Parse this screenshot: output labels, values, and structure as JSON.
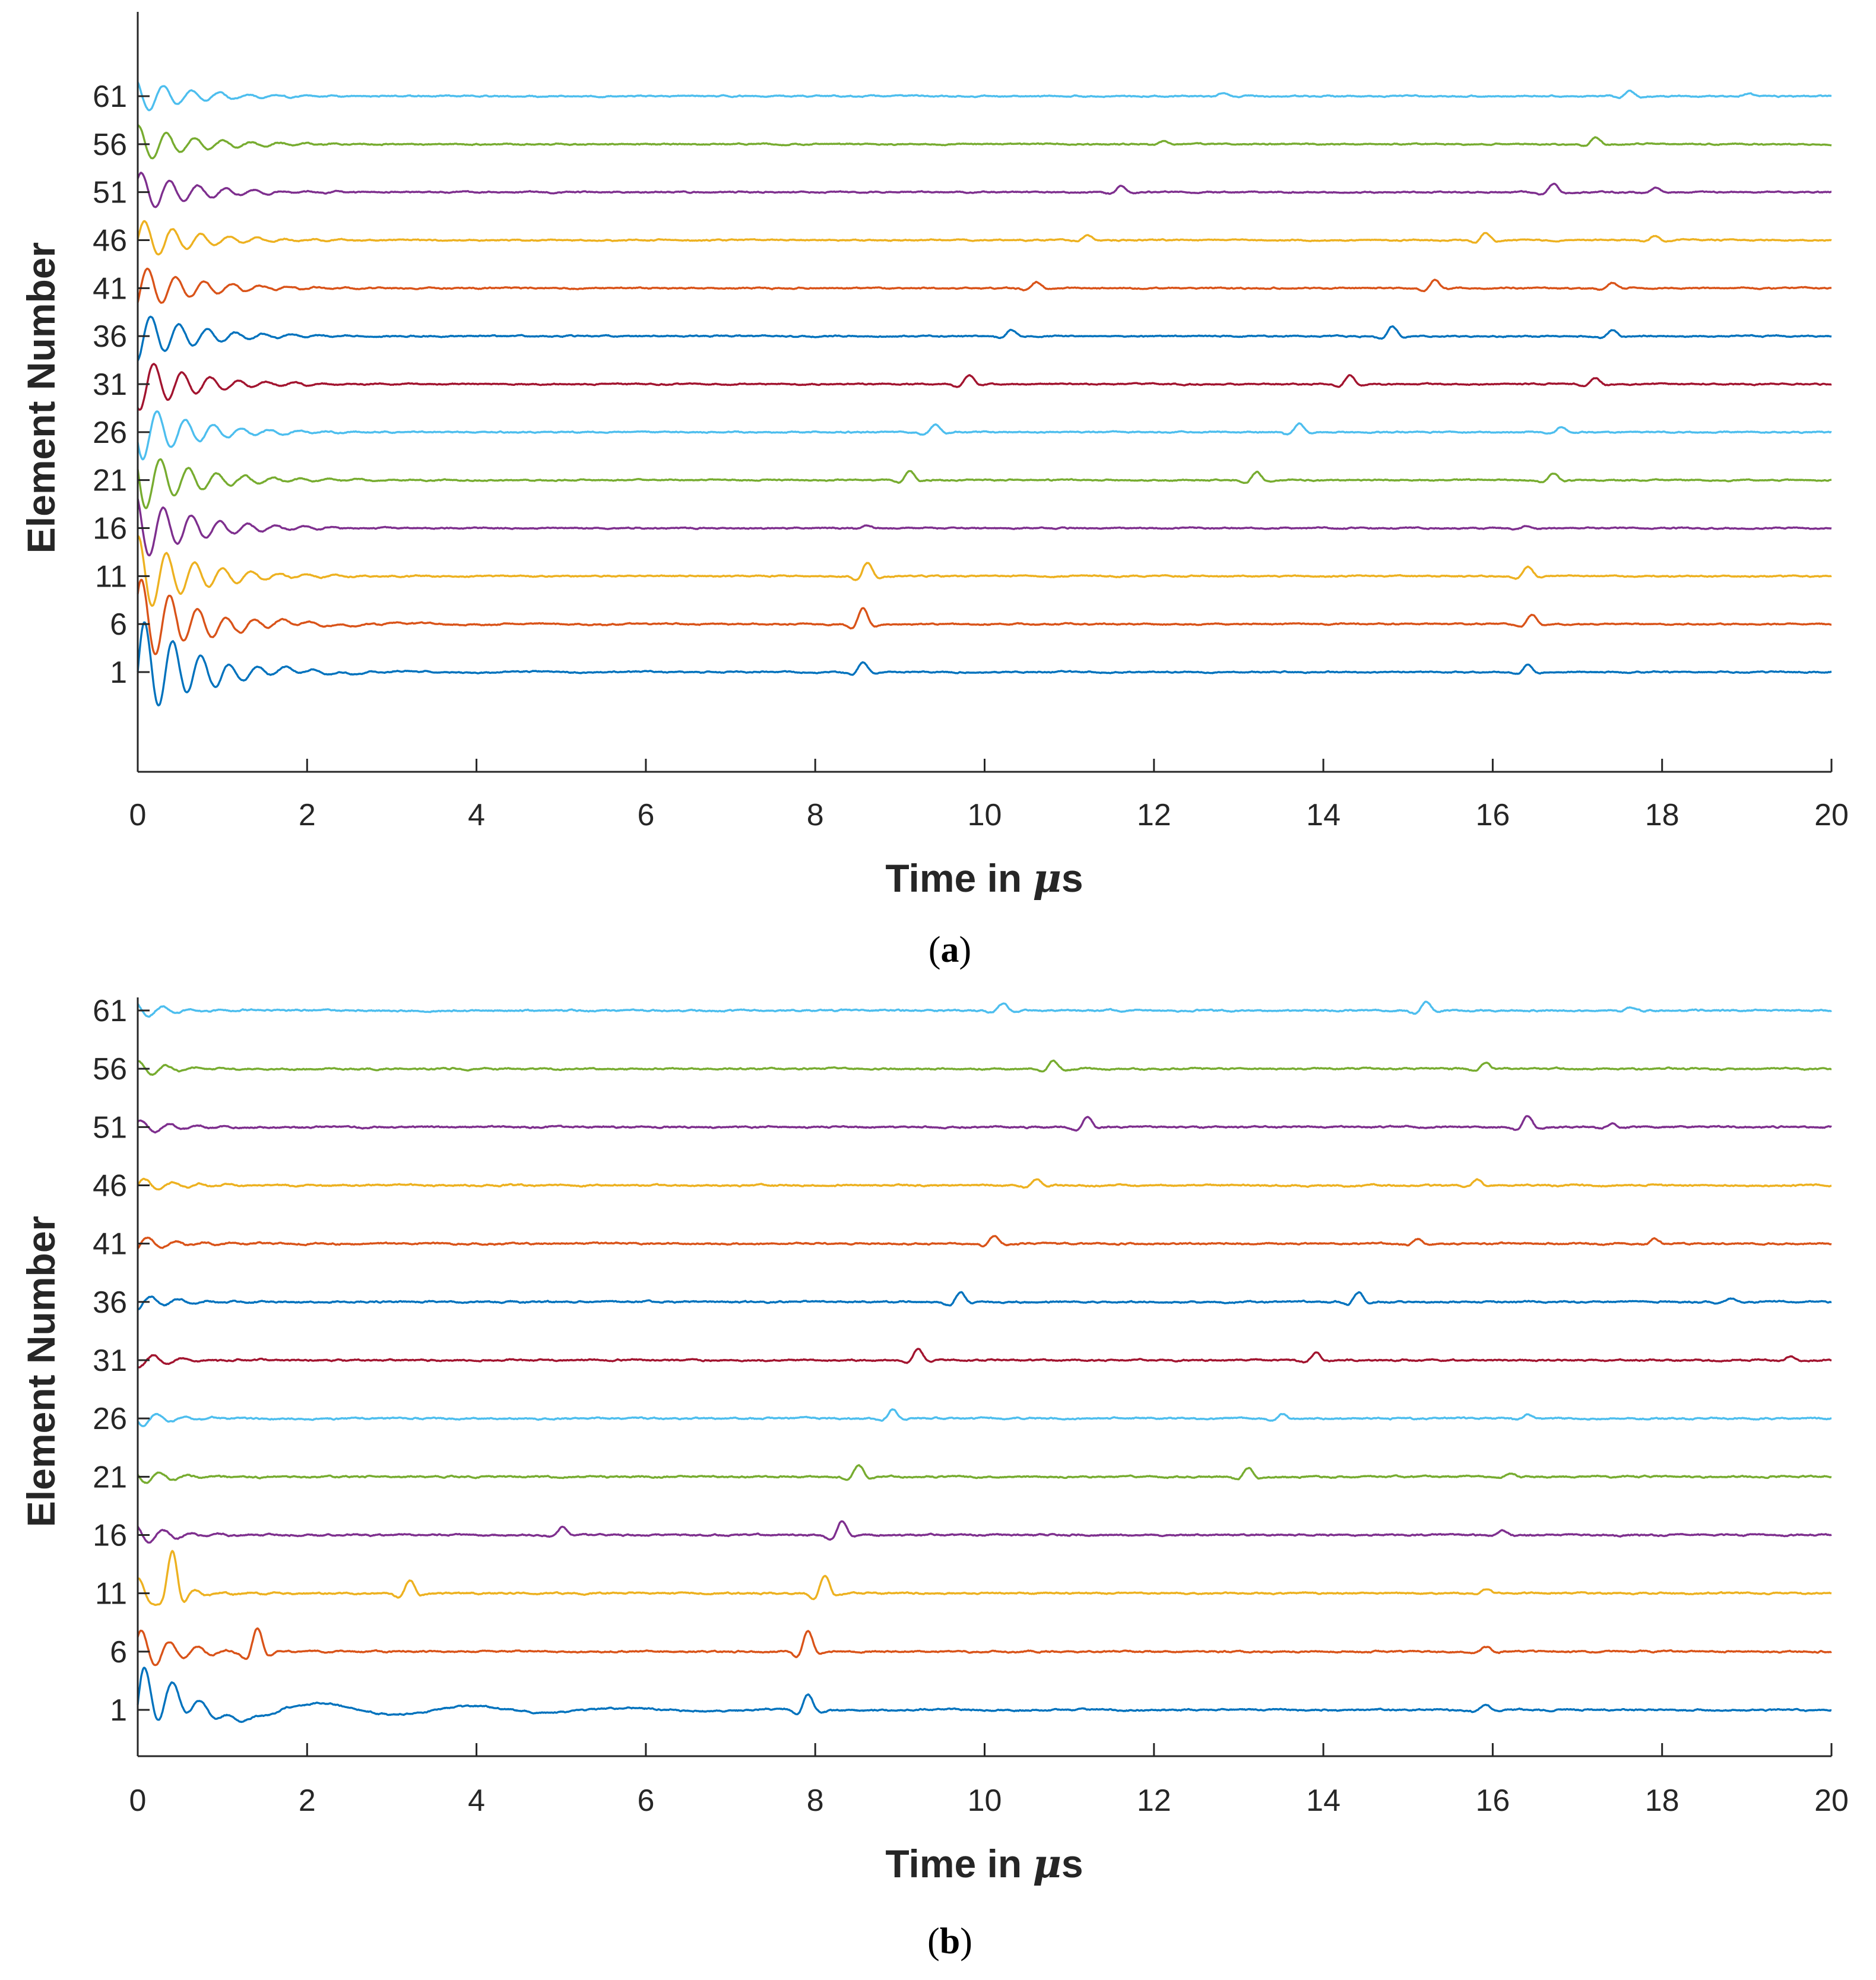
{
  "colors": {
    "palette": [
      "#0072BD",
      "#D95319",
      "#EDB120",
      "#7E2F8E",
      "#77AC30",
      "#4DBEEE",
      "#A2142F"
    ],
    "axis": "#262626"
  },
  "chart_data": [
    {
      "type": "line",
      "panel_label": "a",
      "xlabel": "Time in ",
      "xlabel_unit_symbol": "μ",
      "xlabel_unit_suffix": "s",
      "ylabel": "Element Number",
      "xlim": [
        0,
        20
      ],
      "xticks": [
        "0",
        "2",
        "4",
        "6",
        "8",
        "10",
        "12",
        "14",
        "16",
        "18",
        "20"
      ],
      "yticks": [
        "1",
        "6",
        "11",
        "16",
        "21",
        "26",
        "31",
        "36",
        "41",
        "46",
        "51",
        "56",
        "61"
      ],
      "series": [
        {
          "name": "1",
          "baseline": 1,
          "initial_amp": 2.6,
          "echoes": [
            [
              8.55,
              0.45
            ],
            [
              16.4,
              0.35
            ]
          ]
        },
        {
          "name": "6",
          "baseline": 6,
          "initial_amp": 2.2,
          "echoes": [
            [
              8.55,
              0.75
            ],
            [
              16.45,
              0.45
            ]
          ]
        },
        {
          "name": "11",
          "baseline": 11,
          "initial_amp": 1.9,
          "echoes": [
            [
              8.6,
              0.65
            ],
            [
              16.4,
              0.45
            ]
          ]
        },
        {
          "name": "16",
          "baseline": 16,
          "initial_amp": 1.6,
          "echoes": [
            [
              8.6,
              0.12
            ],
            [
              16.4,
              0.1
            ]
          ]
        },
        {
          "name": "21",
          "baseline": 21,
          "initial_amp": 1.5,
          "echoes": [
            [
              9.1,
              0.45
            ],
            [
              13.2,
              0.4
            ],
            [
              16.7,
              0.3
            ]
          ]
        },
        {
          "name": "26",
          "baseline": 26,
          "initial_amp": 1.4,
          "echoes": [
            [
              9.4,
              0.35
            ],
            [
              13.7,
              0.4
            ],
            [
              16.8,
              0.25
            ]
          ]
        },
        {
          "name": "31",
          "baseline": 31,
          "initial_amp": 1.3,
          "echoes": [
            [
              9.8,
              0.45
            ],
            [
              14.3,
              0.45
            ],
            [
              17.2,
              0.3
            ]
          ]
        },
        {
          "name": "36",
          "baseline": 36,
          "initial_amp": 1.2,
          "echoes": [
            [
              10.3,
              0.3
            ],
            [
              14.8,
              0.45
            ],
            [
              17.4,
              0.3
            ]
          ]
        },
        {
          "name": "41",
          "baseline": 41,
          "initial_amp": 1.1,
          "echoes": [
            [
              10.6,
              0.3
            ],
            [
              15.3,
              0.4
            ],
            [
              17.4,
              0.25
            ]
          ]
        },
        {
          "name": "46",
          "baseline": 46,
          "initial_amp": 1.0,
          "echoes": [
            [
              11.2,
              0.2
            ],
            [
              15.9,
              0.35
            ],
            [
              17.9,
              0.2
            ]
          ]
        },
        {
          "name": "51",
          "baseline": 51,
          "initial_amp": 1.0,
          "echoes": [
            [
              11.6,
              0.3
            ],
            [
              16.7,
              0.4
            ],
            [
              17.9,
              0.2
            ]
          ]
        },
        {
          "name": "56",
          "baseline": 56,
          "initial_amp": 0.9,
          "echoes": [
            [
              12.1,
              0.15
            ],
            [
              17.2,
              0.3
            ]
          ]
        },
        {
          "name": "61",
          "baseline": 61,
          "initial_amp": 0.8,
          "echoes": [
            [
              12.8,
              0.15
            ],
            [
              17.6,
              0.25
            ],
            [
              19.0,
              0.15
            ]
          ]
        }
      ]
    },
    {
      "type": "line",
      "panel_label": "b",
      "xlabel": "Time in ",
      "xlabel_unit_symbol": "μ",
      "xlabel_unit_suffix": "s",
      "ylabel": "Element Number",
      "xlim": [
        0,
        20
      ],
      "xticks": [
        "0",
        "2",
        "4",
        "6",
        "8",
        "10",
        "12",
        "14",
        "16",
        "18",
        "20"
      ],
      "yticks": [
        "1",
        "6",
        "11",
        "16",
        "21",
        "26",
        "31",
        "36",
        "41",
        "46",
        "51",
        "56",
        "61"
      ],
      "series": [
        {
          "name": "1",
          "baseline": 1,
          "initial_amp": 1.6,
          "echoes": [
            [
              7.9,
              0.6
            ],
            [
              15.9,
              0.2
            ]
          ]
        },
        {
          "name": "6",
          "baseline": 6,
          "initial_amp": 0.9,
          "echoes": [
            [
              1.4,
              0.9
            ],
            [
              7.9,
              0.8
            ],
            [
              15.9,
              0.2
            ]
          ]
        },
        {
          "name": "11",
          "baseline": 11,
          "initial_amp": 0.6,
          "echoes": [
            [
              0.4,
              1.6
            ],
            [
              3.2,
              0.5
            ],
            [
              8.1,
              0.7
            ],
            [
              15.9,
              0.15
            ]
          ]
        },
        {
          "name": "16",
          "baseline": 16,
          "initial_amp": 0.4,
          "echoes": [
            [
              5.0,
              0.3
            ],
            [
              8.3,
              0.55
            ],
            [
              16.1,
              0.15
            ]
          ]
        },
        {
          "name": "21",
          "baseline": 21,
          "initial_amp": 0.3,
          "echoes": [
            [
              8.5,
              0.45
            ],
            [
              13.1,
              0.35
            ],
            [
              16.2,
              0.15
            ]
          ]
        },
        {
          "name": "26",
          "baseline": 26,
          "initial_amp": 0.3,
          "echoes": [
            [
              8.9,
              0.35
            ],
            [
              13.5,
              0.2
            ],
            [
              16.4,
              0.15
            ]
          ]
        },
        {
          "name": "31",
          "baseline": 31,
          "initial_amp": 0.3,
          "echoes": [
            [
              9.2,
              0.45
            ],
            [
              13.9,
              0.3
            ],
            [
              19.5,
              0.15
            ]
          ]
        },
        {
          "name": "36",
          "baseline": 36,
          "initial_amp": 0.3,
          "echoes": [
            [
              9.7,
              0.4
            ],
            [
              14.4,
              0.4
            ],
            [
              18.8,
              0.15
            ]
          ]
        },
        {
          "name": "41",
          "baseline": 41,
          "initial_amp": 0.3,
          "echoes": [
            [
              10.1,
              0.3
            ],
            [
              15.1,
              0.2
            ],
            [
              17.9,
              0.2
            ]
          ]
        },
        {
          "name": "46",
          "baseline": 46,
          "initial_amp": 0.3,
          "echoes": [
            [
              10.6,
              0.25
            ],
            [
              15.8,
              0.25
            ]
          ]
        },
        {
          "name": "51",
          "baseline": 51,
          "initial_amp": 0.3,
          "echoes": [
            [
              11.2,
              0.4
            ],
            [
              16.4,
              0.45
            ],
            [
              17.4,
              0.15
            ]
          ]
        },
        {
          "name": "56",
          "baseline": 56,
          "initial_amp": 0.3,
          "echoes": [
            [
              10.8,
              0.3
            ],
            [
              15.9,
              0.25
            ]
          ]
        },
        {
          "name": "61",
          "baseline": 61,
          "initial_amp": 0.3,
          "echoes": [
            [
              10.2,
              0.3
            ],
            [
              15.2,
              0.35
            ],
            [
              17.6,
              0.15
            ]
          ]
        }
      ]
    }
  ]
}
